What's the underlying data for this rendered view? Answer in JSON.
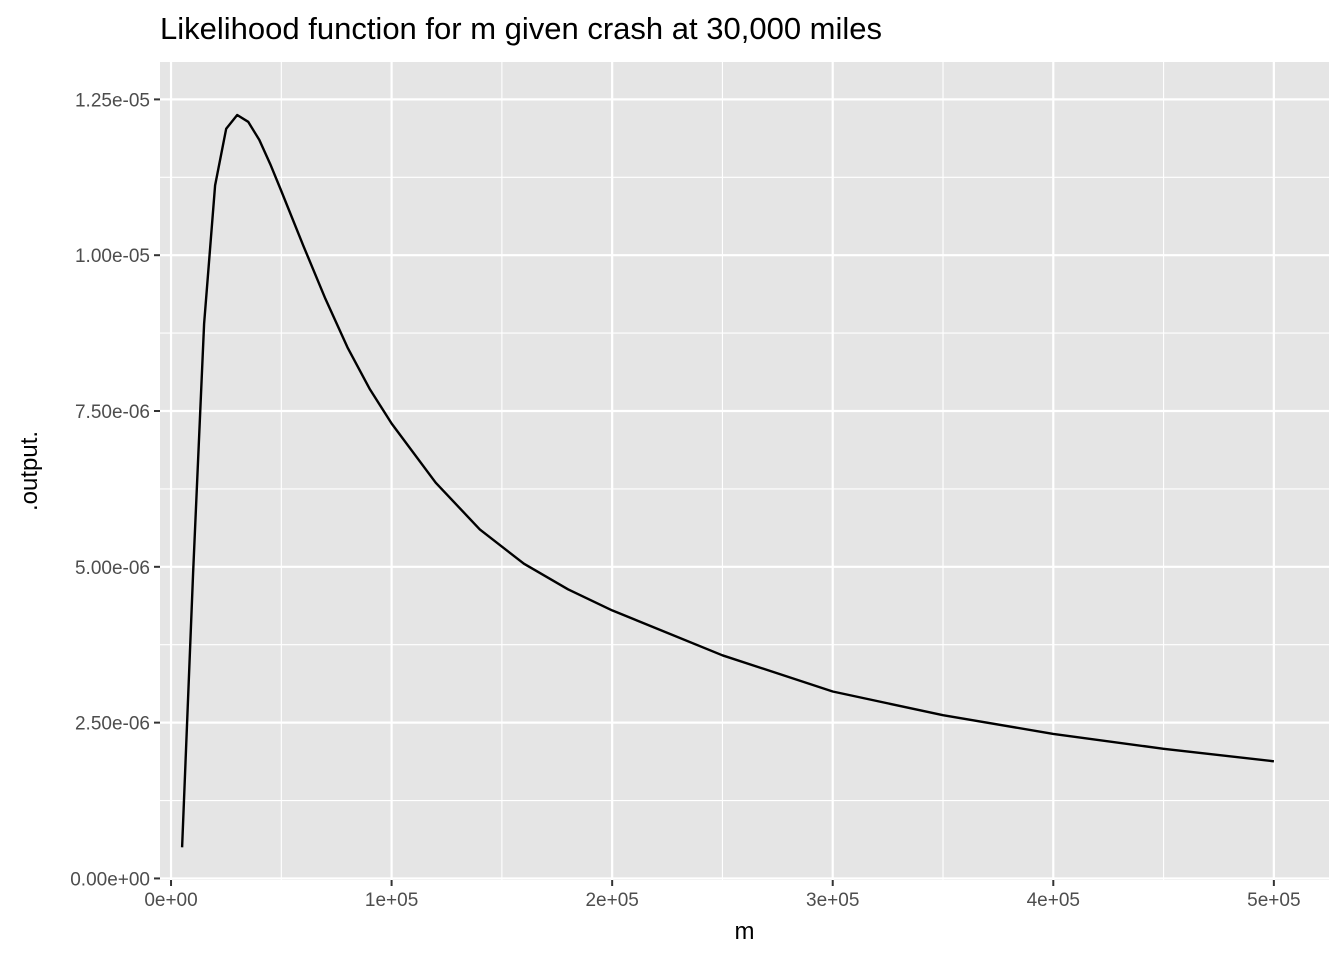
{
  "chart_data": {
    "type": "line",
    "title": "Likelihood function for m given crash at 30,000 miles",
    "xlabel": "m",
    "ylabel": ".output.",
    "xlim": [
      -5000,
      525000
    ],
    "ylim": [
      -2.5e-08,
      1.31e-05
    ],
    "x_ticks": [
      {
        "value": 0,
        "label": "0e+00"
      },
      {
        "value": 100000,
        "label": "1e+05"
      },
      {
        "value": 200000,
        "label": "2e+05"
      },
      {
        "value": 300000,
        "label": "3e+05"
      },
      {
        "value": 400000,
        "label": "4e+05"
      },
      {
        "value": 500000,
        "label": "5e+05"
      }
    ],
    "y_ticks": [
      {
        "value": 0,
        "label": "0.00e+00"
      },
      {
        "value": 2.5e-06,
        "label": "2.50e-06"
      },
      {
        "value": 5e-06,
        "label": "5.00e-06"
      },
      {
        "value": 7.5e-06,
        "label": "7.50e-06"
      },
      {
        "value": 1e-05,
        "label": "1.00e-05"
      },
      {
        "value": 1.25e-05,
        "label": "1.25e-05"
      }
    ],
    "grid": true,
    "panel_background": "#e5e5e5",
    "grid_color": "#ffffff",
    "line_color": "#000000",
    "series": [
      {
        "x": [
          5000,
          10000,
          15000,
          20000,
          25000,
          30000,
          35000,
          40000,
          45000,
          50000,
          60000,
          70000,
          80000,
          90000,
          100000,
          120000,
          140000,
          160000,
          180000,
          200000,
          250000,
          300000,
          350000,
          400000,
          450000,
          500000
        ],
        "values": [
          5e-07,
          4.9e-06,
          8.9e-06,
          1.112e-05,
          1.203e-05,
          1.225e-05,
          1.214e-05,
          1.185e-05,
          1.146e-05,
          1.103e-05,
          1.015e-05,
          9.3e-06,
          8.52e-06,
          7.86e-06,
          7.3e-06,
          6.35e-06,
          5.6e-06,
          5.05e-06,
          4.64e-06,
          4.3e-06,
          3.58e-06,
          3e-06,
          2.62e-06,
          2.32e-06,
          2.08e-06,
          1.88e-06
        ]
      }
    ]
  }
}
